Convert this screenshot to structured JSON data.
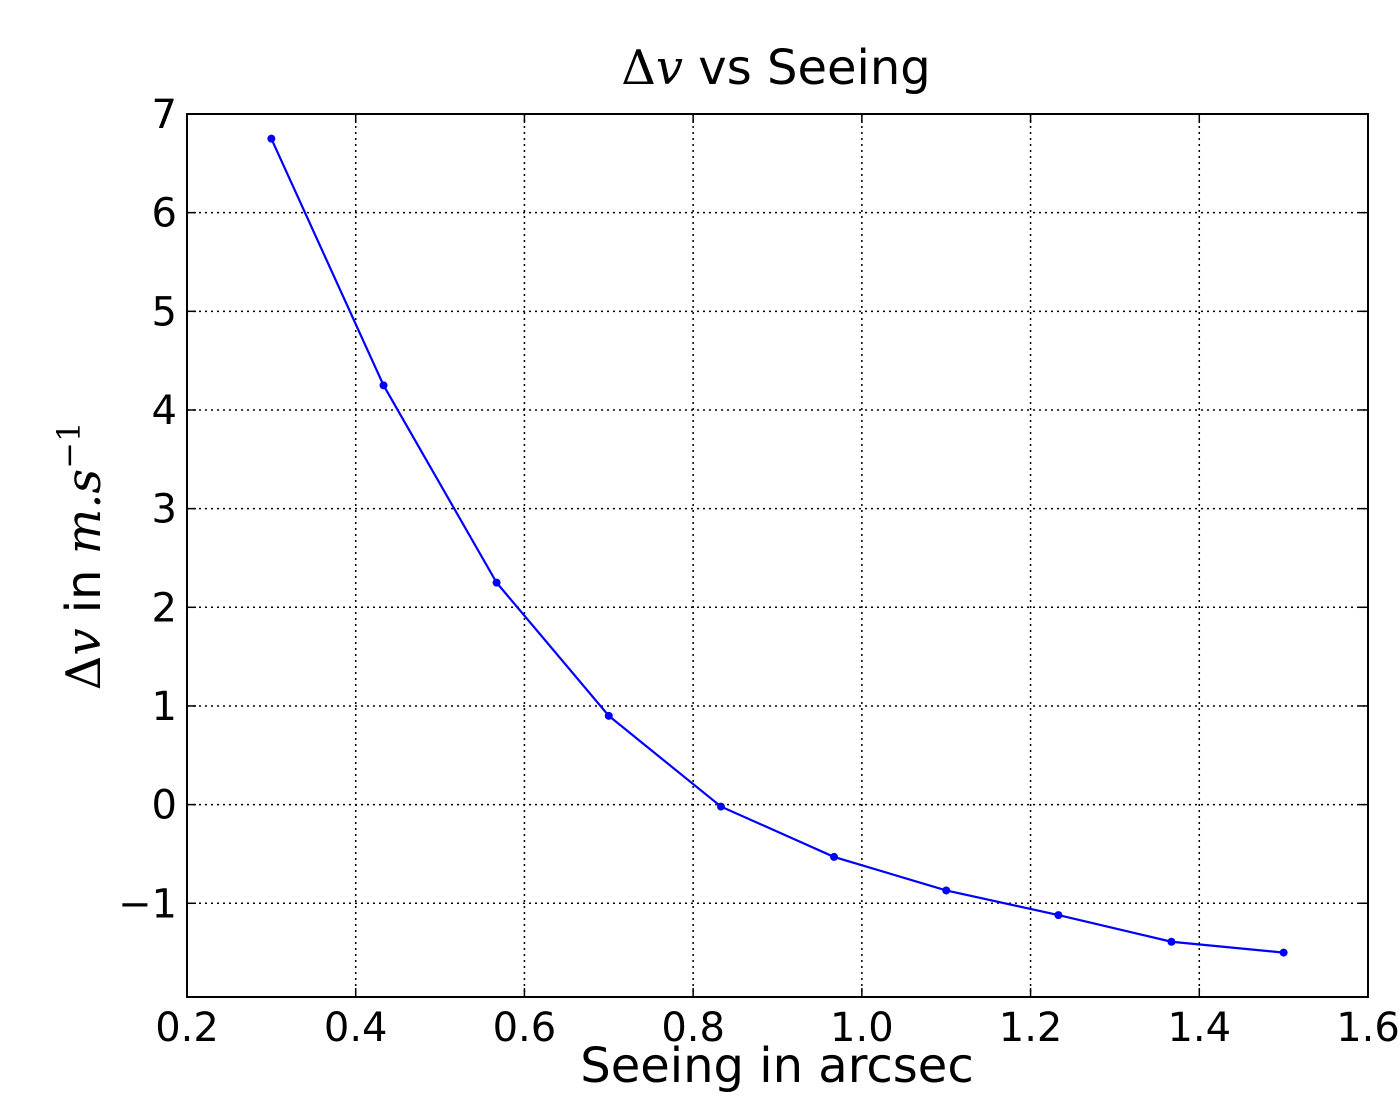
{
  "chart_data": {
    "type": "line",
    "title": "Δv vs Seeing",
    "title_parts": {
      "delta": "Δ",
      "var": "v",
      "rest": " vs Seeing"
    },
    "xlabel": "Seeing in arcsec",
    "ylabel": "Δv in m.s⁻¹",
    "ylabel_parts": {
      "delta": "Δ",
      "var": "v",
      "text": " in ",
      "unit": "m.s",
      "exponent": "−1"
    },
    "xlim": [
      0.2,
      1.6
    ],
    "ylim": [
      -1.95,
      7
    ],
    "xticks": [
      0.2,
      0.4,
      0.6,
      0.8,
      1.0,
      1.2,
      1.4,
      1.6
    ],
    "xtick_labels": [
      "0.2",
      "0.4",
      "0.6",
      "0.8",
      "1.0",
      "1.2",
      "1.4",
      "1.6"
    ],
    "yticks": [
      -1,
      0,
      1,
      2,
      3,
      4,
      5,
      6,
      7
    ],
    "ytick_labels": [
      "−1",
      "0",
      "1",
      "2",
      "3",
      "4",
      "5",
      "6",
      "7"
    ],
    "grid": true,
    "line_color": "#0000ff",
    "series": [
      {
        "x": [
          0.3,
          0.433,
          0.567,
          0.7,
          0.833,
          0.967,
          1.1,
          1.233,
          1.367,
          1.5
        ],
        "y": [
          6.75,
          4.25,
          2.25,
          0.9,
          -0.02,
          -0.53,
          -0.87,
          -1.12,
          -1.39,
          -1.5
        ]
      }
    ]
  }
}
